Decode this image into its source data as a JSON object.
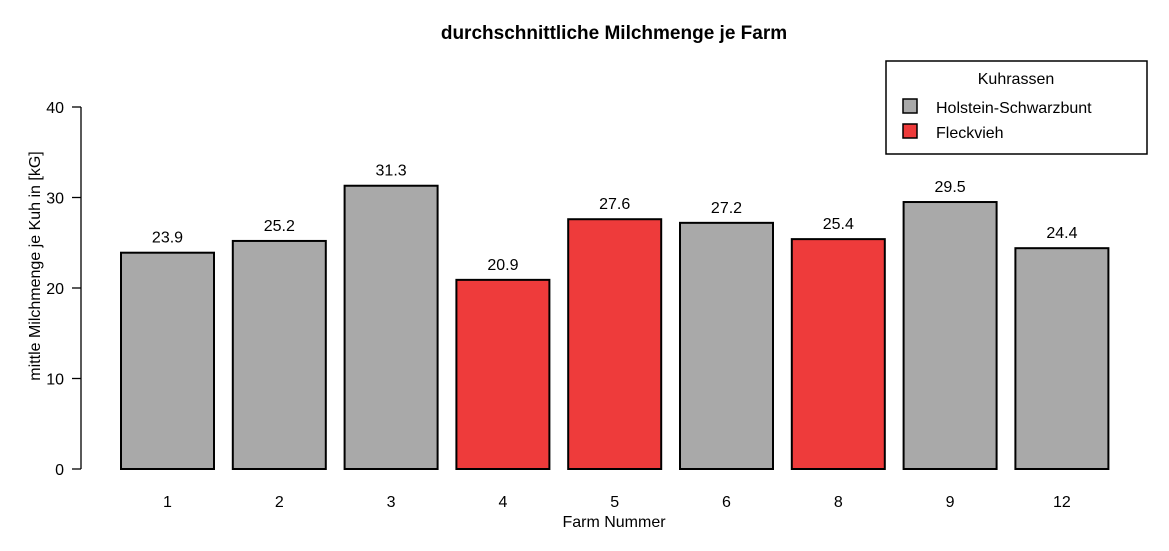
{
  "chart_data": {
    "type": "bar",
    "title": "durchschnittliche Milchmenge je Farm",
    "xlabel": "Farm Nummer",
    "ylabel": "mittle Milchmenge je Kuh in [kG]",
    "ylim": [
      0,
      40
    ],
    "yticks": [
      0,
      10,
      20,
      30,
      40
    ],
    "categories": [
      "1",
      "2",
      "3",
      "4",
      "5",
      "6",
      "8",
      "9",
      "12"
    ],
    "values": [
      23.9,
      25.2,
      31.3,
      20.9,
      27.6,
      27.2,
      25.4,
      29.5,
      24.4
    ],
    "data_labels": [
      "23.9",
      "25.2",
      "31.3",
      "20.9",
      "27.6",
      "27.2",
      "25.4",
      "29.5",
      "24.4"
    ],
    "breed": [
      "Holstein-Schwarzbunt",
      "Holstein-Schwarzbunt",
      "Holstein-Schwarzbunt",
      "Fleckvieh",
      "Fleckvieh",
      "Holstein-Schwarzbunt",
      "Fleckvieh",
      "Holstein-Schwarzbunt",
      "Holstein-Schwarzbunt"
    ],
    "grid": false,
    "legend": {
      "title": "Kuhrassen",
      "placement": "top-right",
      "entries": [
        {
          "name": "Holstein-Schwarzbunt",
          "color": "#a9a9a9"
        },
        {
          "name": "Fleckvieh",
          "color": "#ee3b3b"
        }
      ]
    }
  }
}
